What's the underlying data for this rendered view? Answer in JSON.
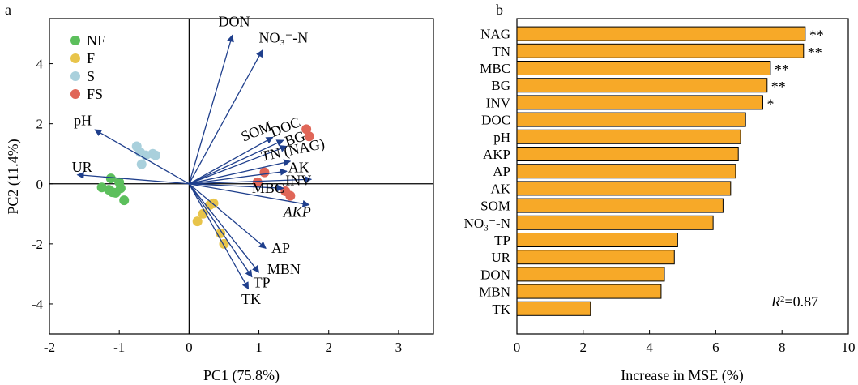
{
  "panels": {
    "a": "a",
    "b": "b"
  },
  "chart_data": [
    {
      "type": "scatter",
      "subtype": "pca-biplot",
      "xlabel": "PC1 (75.8%)",
      "ylabel": "PC2 (11.4%)",
      "xlim": [
        -2,
        3.5
      ],
      "ylim": [
        -5,
        5.5
      ],
      "xticks": [
        -2,
        -1,
        0,
        1,
        2,
        3
      ],
      "yticks": [
        -4,
        -2,
        0,
        2,
        4
      ],
      "legend_position": "top-left",
      "arrow_color": "#1f3f8c",
      "series": [
        {
          "name": "NF",
          "color": "#5cbf5c",
          "x": [
            -1.12,
            -1.0,
            -1.25,
            -1.15,
            -1.1,
            -1.05,
            -0.98,
            -0.93
          ],
          "y": [
            0.18,
            0.05,
            -0.12,
            -0.2,
            -0.28,
            -0.3,
            -0.15,
            -0.55
          ]
        },
        {
          "name": "F",
          "color": "#e8c44a",
          "x": [
            0.12,
            0.2,
            0.3,
            0.45,
            0.5,
            0.35
          ],
          "y": [
            -1.25,
            -1.0,
            -0.7,
            -1.65,
            -2.0,
            -0.65
          ]
        },
        {
          "name": "S",
          "color": "#a9d0dc",
          "x": [
            -0.75,
            -0.7,
            -0.62,
            -0.52,
            -0.48,
            -0.68
          ],
          "y": [
            1.25,
            1.05,
            0.95,
            1.0,
            0.95,
            0.65
          ]
        },
        {
          "name": "FS",
          "color": "#e06658",
          "x": [
            1.08,
            0.98,
            1.38,
            1.45,
            1.68,
            1.72
          ],
          "y": [
            0.38,
            0.05,
            -0.25,
            -0.4,
            1.82,
            1.58
          ]
        }
      ],
      "vectors": [
        {
          "label": "DON",
          "x": 0.62,
          "y": 4.95,
          "lx": 0.42,
          "ly": 5.25,
          "italic": false
        },
        {
          "label": "NO₃⁻-N",
          "x": 1.05,
          "y": 4.45,
          "lx": 1.0,
          "ly": 4.7,
          "italic": false
        },
        {
          "label": "pH",
          "x": -1.35,
          "y": 1.8,
          "lx": -1.65,
          "ly": 1.95,
          "italic": false
        },
        {
          "label": "UR",
          "x": -1.6,
          "y": 0.3,
          "lx": -1.68,
          "ly": 0.4,
          "italic": false
        },
        {
          "label": "SOM",
          "x": 1.2,
          "y": 1.55,
          "lx": 0.78,
          "ly": 1.4,
          "italic": false,
          "rot": -22
        },
        {
          "label": "DOC",
          "x": 1.35,
          "y": 1.45,
          "lx": 1.2,
          "ly": 1.55,
          "italic": false,
          "rot": -22
        },
        {
          "label": "BG",
          "x": 1.4,
          "y": 1.25,
          "lx": 1.4,
          "ly": 1.25,
          "italic": false,
          "rot": -18
        },
        {
          "label": "TN (NAG)",
          "x": 1.45,
          "y": 0.75,
          "lx": 1.05,
          "ly": 0.75,
          "italic": false,
          "rot": -12
        },
        {
          "label": "AK",
          "x": 1.4,
          "y": 0.42,
          "lx": 1.42,
          "ly": 0.38,
          "italic": false
        },
        {
          "label": "INV",
          "x": 1.75,
          "y": 0.15,
          "lx": 1.38,
          "ly": -0.05,
          "italic": false
        },
        {
          "label": "MBC",
          "x": 1.35,
          "y": -0.15,
          "lx": 0.9,
          "ly": -0.3,
          "italic": false
        },
        {
          "label": "AKP",
          "x": 1.72,
          "y": -0.7,
          "lx": 1.35,
          "ly": -1.1,
          "italic": true
        },
        {
          "label": "AP",
          "x": 1.1,
          "y": -2.15,
          "lx": 1.18,
          "ly": -2.3,
          "italic": false
        },
        {
          "label": "MBN",
          "x": 1.0,
          "y": -2.95,
          "lx": 1.12,
          "ly": -3.0,
          "italic": false
        },
        {
          "label": "TP",
          "x": 0.9,
          "y": -3.1,
          "lx": 0.92,
          "ly": -3.45,
          "italic": false
        },
        {
          "label": "TK",
          "x": 0.85,
          "y": -3.5,
          "lx": 0.75,
          "ly": -4.0,
          "italic": false
        }
      ]
    },
    {
      "type": "bar",
      "orientation": "horizontal",
      "xlabel": "Increase in MSE (%)",
      "xlim": [
        0,
        10
      ],
      "xticks": [
        0,
        2,
        4,
        6,
        8,
        10
      ],
      "bar_color": "#f7a928",
      "categories": [
        "NAG",
        "TN",
        "MBC",
        "BG",
        "INV",
        "DOC",
        "pH",
        "AKP",
        "AP",
        "AK",
        "SOM",
        "NO₃⁻-N",
        "TP",
        "UR",
        "DON",
        "MBN",
        "TK"
      ],
      "values": [
        8.7,
        8.65,
        7.65,
        7.55,
        7.42,
        6.9,
        6.75,
        6.68,
        6.6,
        6.45,
        6.22,
        5.92,
        4.85,
        4.75,
        4.45,
        4.35,
        2.22
      ],
      "significance": [
        "**",
        "**",
        "**",
        "**",
        "*",
        "",
        "",
        "",
        "",
        "",
        "",
        "",
        "",
        "",
        "",
        "",
        ""
      ],
      "annotation": {
        "prefix": "R",
        "sup": "2",
        "suffix": "=0.87"
      }
    }
  ]
}
